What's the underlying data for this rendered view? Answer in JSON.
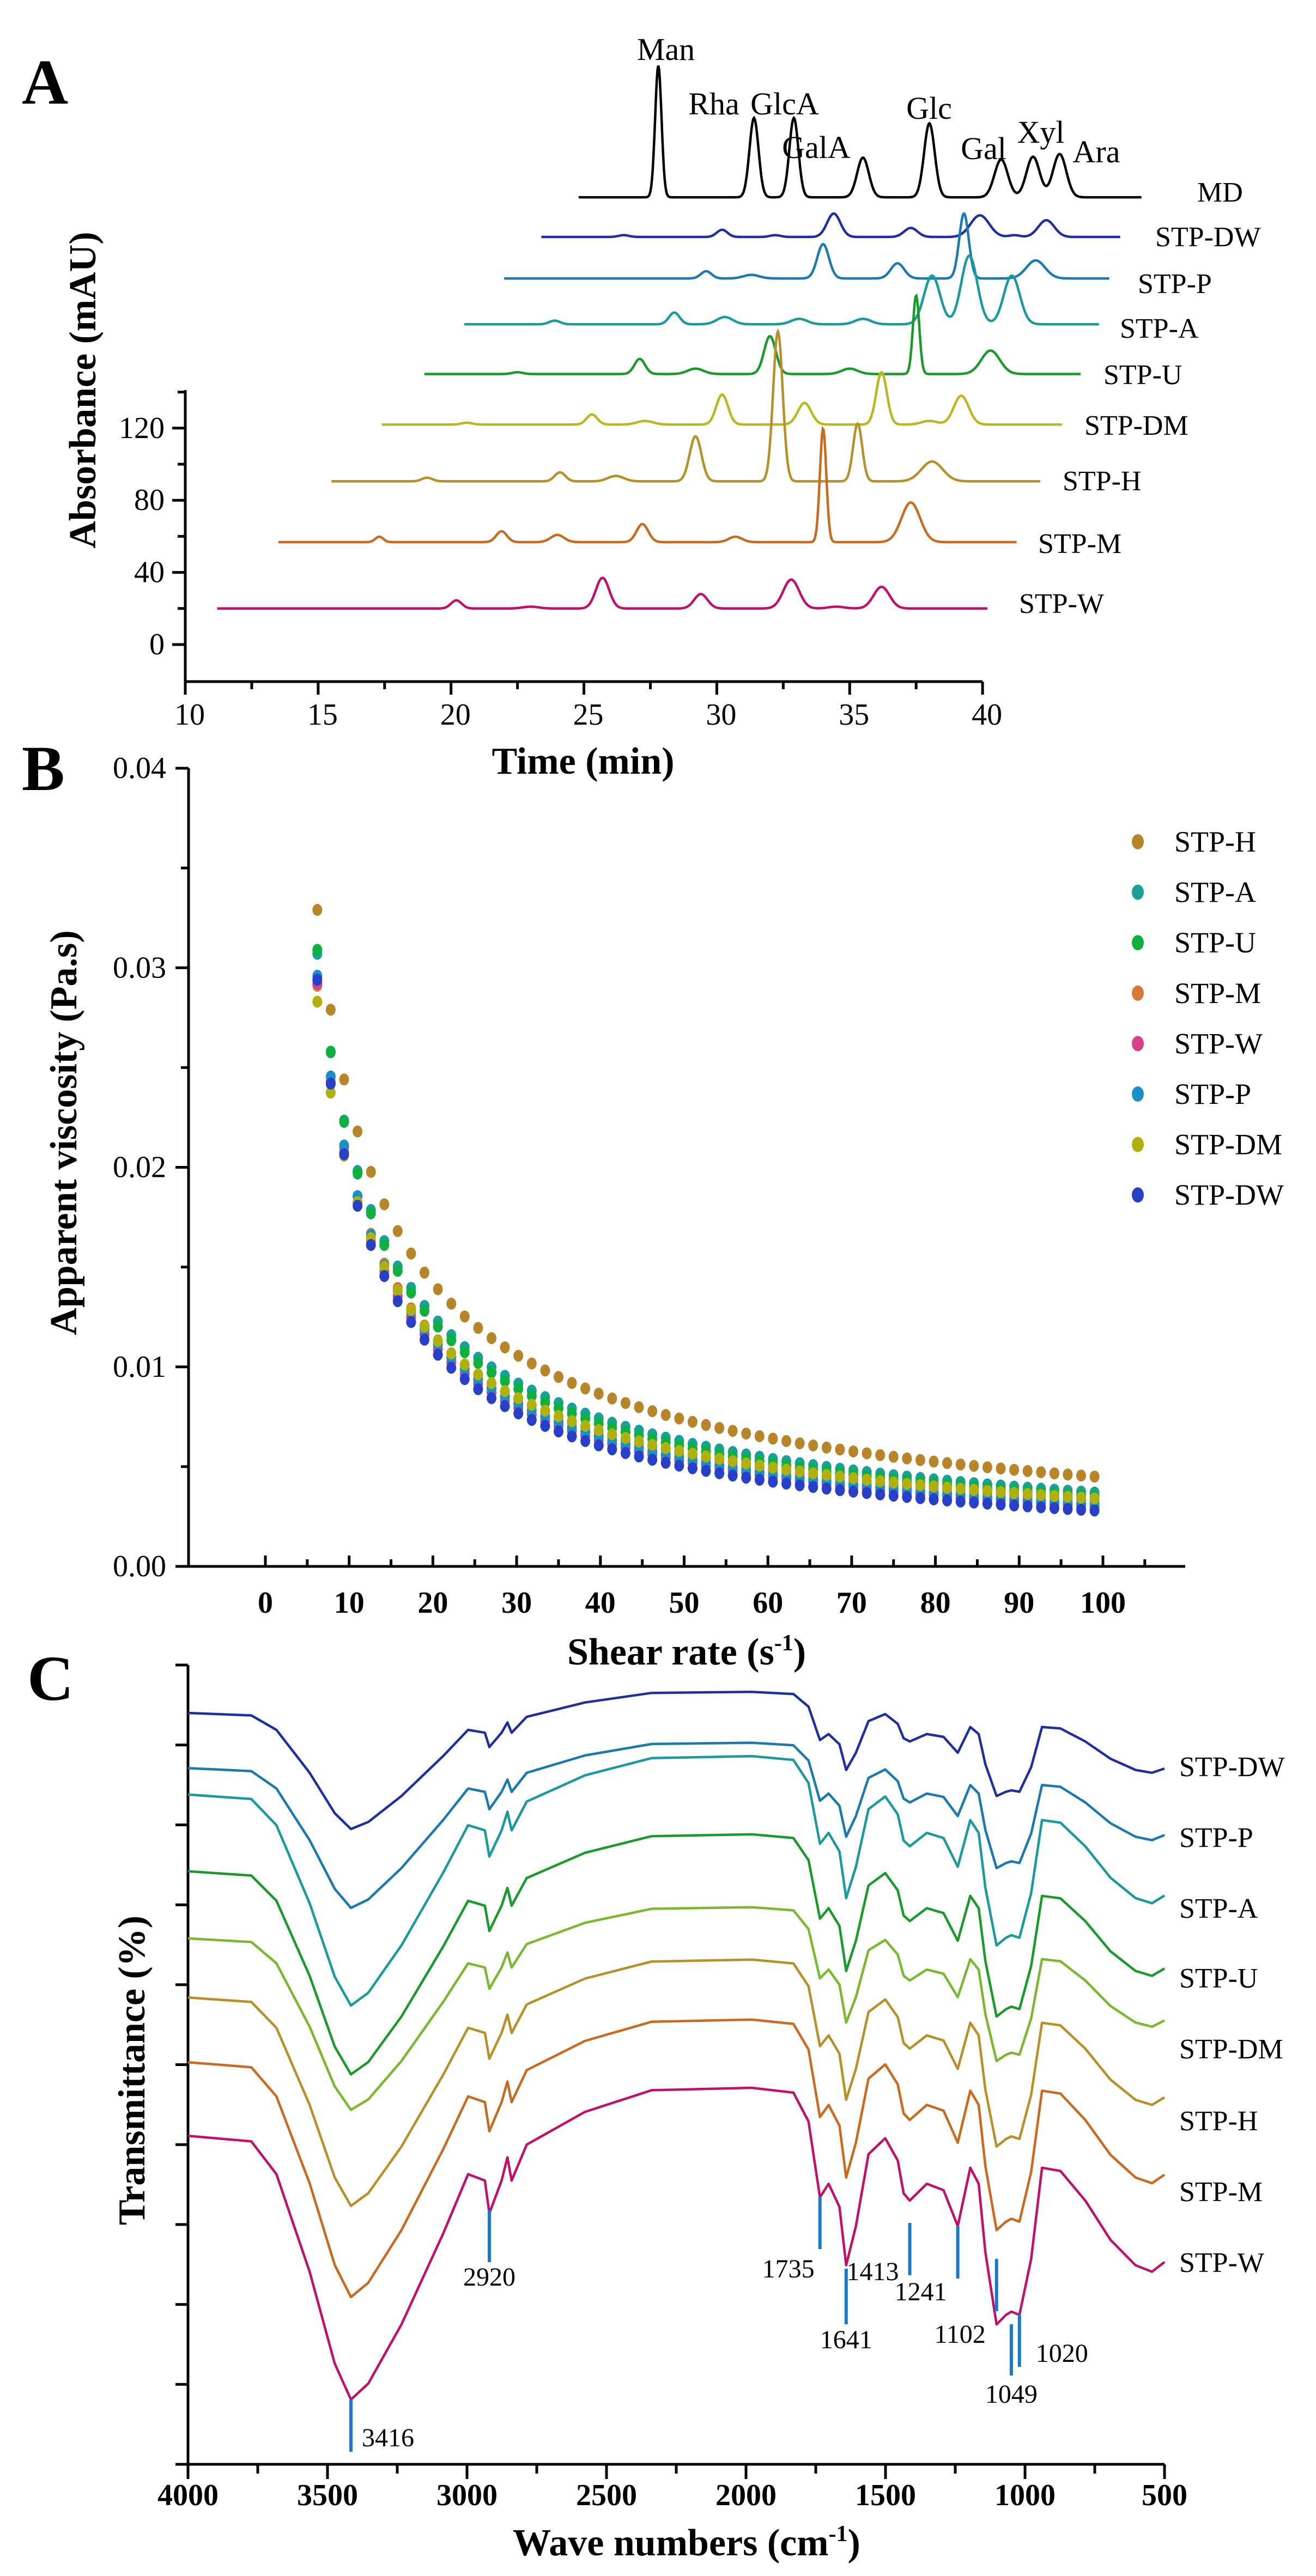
{
  "chart_data": [
    {
      "panel": "A",
      "type": "line",
      "title": "",
      "xlabel": "Time (min)",
      "ylabel": "Absorbance (mAU)",
      "xlim": [
        10,
        40
      ],
      "ylim": [
        -20,
        140
      ],
      "xticks": [
        "10",
        "15",
        "20",
        "25",
        "30",
        "35",
        "40"
      ],
      "yticks": [
        "0",
        "40",
        "80",
        "120"
      ],
      "note": "stacked chromatograms; peak = [time_min, height_mAU, sigma_min] in displayed axis units",
      "series": [
        {
          "name": "MD",
          "color": "#000000",
          "baseline": 248,
          "range": [
            24.8,
            46
          ],
          "peaks": [
            [
              27.8,
              73,
              0.12
            ],
            [
              31.4,
              44,
              0.17
            ],
            [
              32.9,
              44,
              0.17
            ],
            [
              35.5,
              22,
              0.22
            ],
            [
              38,
              41,
              0.2
            ],
            [
              40.7,
              21,
              0.25
            ],
            [
              41.9,
              22.5,
              0.25
            ],
            [
              42.9,
              24,
              0.25
            ]
          ]
        },
        {
          "name": "STP-DW",
          "color": "#1f2fa0",
          "baseline": 226,
          "range": [
            23.4,
            45.2
          ],
          "peaks": [
            [
              26.5,
              1,
              0.2
            ],
            [
              30.2,
              4,
              0.2
            ],
            [
              32.2,
              1,
              0.2
            ],
            [
              34.4,
              13,
              0.25
            ],
            [
              37.3,
              5,
              0.25
            ],
            [
              39.9,
              12,
              0.35
            ],
            [
              41.2,
              1,
              0.2
            ],
            [
              42.4,
              9.3,
              0.3
            ]
          ]
        },
        {
          "name": "STP-P",
          "color": "#1a7ab0",
          "baseline": 203,
          "range": [
            22,
            44.8
          ],
          "peaks": [
            [
              29.6,
              4,
              0.2
            ],
            [
              31.3,
              2,
              0.3
            ],
            [
              34,
              19,
              0.22
            ],
            [
              36.8,
              8.4,
              0.25
            ],
            [
              39.3,
              36,
              0.18
            ],
            [
              42,
              10,
              0.35
            ]
          ]
        },
        {
          "name": "STP-A",
          "color": "#1a9a9a",
          "baseline": 177.6,
          "range": [
            20.5,
            44.4
          ],
          "peaks": [
            [
              23.9,
              2,
              0.2
            ],
            [
              28.4,
              6.5,
              0.2
            ],
            [
              30.3,
              4,
              0.3
            ],
            [
              33.1,
              3,
              0.3
            ],
            [
              35.5,
              3,
              0.3
            ],
            [
              38.1,
              27,
              0.3
            ],
            [
              39.5,
              38,
              0.3
            ],
            [
              41.1,
              27,
              0.3
            ]
          ]
        },
        {
          "name": "STP-U",
          "color": "#1a9a2a",
          "baseline": 150,
          "range": [
            19,
            43.7
          ],
          "peaks": [
            [
              22.5,
              1,
              0.2
            ],
            [
              27.1,
              8.4,
              0.2
            ],
            [
              29.2,
              3,
              0.3
            ],
            [
              32,
              21,
              0.22
            ],
            [
              35,
              3,
              0.3
            ],
            [
              37.5,
              43.5,
              0.12
            ],
            [
              40.3,
              13,
              0.35
            ]
          ]
        },
        {
          "name": "STP-DM",
          "color": "#b8b820",
          "baseline": 122,
          "range": [
            17.4,
            43
          ],
          "peaks": [
            [
              20.6,
              1,
              0.2
            ],
            [
              25.3,
              5.6,
              0.2
            ],
            [
              27.3,
              2,
              0.3
            ],
            [
              30.2,
              16.6,
              0.22
            ],
            [
              33.3,
              12,
              0.25
            ],
            [
              36.2,
              29,
              0.2
            ],
            [
              38,
              2,
              0.3
            ],
            [
              39.2,
              16,
              0.28
            ]
          ]
        },
        {
          "name": "STP-H",
          "color": "#b8902a",
          "baseline": 90.5,
          "range": [
            15.5,
            42.2
          ],
          "peaks": [
            [
              19.1,
              2,
              0.2
            ],
            [
              24.1,
              5,
              0.2
            ],
            [
              26.2,
              3,
              0.3
            ],
            [
              29.2,
              25,
              0.22
            ],
            [
              32.3,
              83,
              0.18
            ],
            [
              35.3,
              32,
              0.17
            ],
            [
              38.1,
              11,
              0.4
            ]
          ]
        },
        {
          "name": "STP-M",
          "color": "#c86a20",
          "baseline": 56.8,
          "range": [
            13.5,
            41.3
          ],
          "peaks": [
            [
              17.3,
              3,
              0.15
            ],
            [
              21.9,
              6,
              0.2
            ],
            [
              24,
              4,
              0.25
            ],
            [
              27.2,
              10,
              0.22
            ],
            [
              30.7,
              3,
              0.25
            ],
            [
              34,
              63,
              0.12
            ],
            [
              37.3,
              22,
              0.35
            ]
          ]
        },
        {
          "name": "STP-W",
          "color": "#c0106a",
          "baseline": 20,
          "range": [
            11.2,
            40.2
          ],
          "peaks": [
            [
              20.2,
              4.5,
              0.2
            ],
            [
              23,
              1,
              0.3
            ],
            [
              25.7,
              17,
              0.25
            ],
            [
              29.4,
              8,
              0.25
            ],
            [
              32.8,
              16,
              0.3
            ],
            [
              34.5,
              1,
              0.3
            ],
            [
              36.2,
              12,
              0.3
            ]
          ]
        }
      ],
      "annotations": [
        "Man",
        "Rha",
        "GlcA",
        "GalA",
        "Glc",
        "Gal",
        "Xyl",
        "Ara"
      ]
    },
    {
      "panel": "B",
      "type": "scatter",
      "xlabel": "Shear rate (s",
      "xlabel_sup": "-1",
      "xlabel_end": ")",
      "ylabel": "Apparent viscosity (Pa.s)",
      "xlim": [
        -9,
        109
      ],
      "ylim": [
        0,
        0.04
      ],
      "xticks": [
        "0",
        "10",
        "20",
        "30",
        "40",
        "50",
        "60",
        "70",
        "80",
        "90",
        "100"
      ],
      "yticks": [
        "0.00",
        "0.01",
        "0.02",
        "0.03",
        "0.04"
      ],
      "legend_position": "top-right",
      "x": {
        "start": 6.2,
        "step": 1.6,
        "end": 100
      },
      "fit": "power-law between first and last values",
      "series": [
        {
          "name": "STP-H",
          "color": "#b8862a",
          "first": 0.0329,
          "last": 0.0045
        },
        {
          "name": "STP-A",
          "color": "#18a09a",
          "first": 0.0307,
          "last": 0.0037
        },
        {
          "name": "STP-U",
          "color": "#10b040",
          "first": 0.0309,
          "last": 0.0035
        },
        {
          "name": "STP-M",
          "color": "#d87838",
          "first": 0.0291,
          "last": 0.0033
        },
        {
          "name": "STP-W",
          "color": "#d8408a",
          "first": 0.0292,
          "last": 0.003
        },
        {
          "name": "STP-P",
          "color": "#1890c8",
          "first": 0.0296,
          "last": 0.0031
        },
        {
          "name": "STP-DM",
          "color": "#b0b010",
          "first": 0.0283,
          "last": 0.0034
        },
        {
          "name": "STP-DW",
          "color": "#2840c8",
          "first": 0.0294,
          "last": 0.0028
        }
      ]
    },
    {
      "panel": "C",
      "type": "line",
      "xlabel": "Wave  numbers (cm",
      "xlabel_sup": "-1",
      "xlabel_end": ")",
      "ylabel": "Transmittance (%)",
      "xlim": [
        4000,
        500
      ],
      "ylim": [
        0,
        100
      ],
      "xticks": [
        "4000",
        "3500",
        "3000",
        "2500",
        "2000",
        "1500",
        "1000",
        "500"
      ],
      "template_STP-W": [
        [
          4000,
          41.1
        ],
        [
          3773,
          40.4
        ],
        [
          3683,
          36.3
        ],
        [
          3564,
          24.1
        ],
        [
          3474,
          12.6
        ],
        [
          3416,
          8.1
        ],
        [
          3354,
          10.1
        ],
        [
          3235,
          17.5
        ],
        [
          3085,
          28.9
        ],
        [
          2996,
          36.3
        ],
        [
          2936,
          35.5
        ],
        [
          2920,
          31.4
        ],
        [
          2876,
          35.5
        ],
        [
          2855,
          38.4
        ],
        [
          2840,
          35.5
        ],
        [
          2786,
          40.0
        ],
        [
          2577,
          44.1
        ],
        [
          2338,
          46.8
        ],
        [
          1979,
          47.1
        ],
        [
          1830,
          46.5
        ],
        [
          1776,
          42.9
        ],
        [
          1735,
          33.4
        ],
        [
          1704,
          35.1
        ],
        [
          1665,
          32.2
        ],
        [
          1641,
          24.9
        ],
        [
          1606,
          29.8
        ],
        [
          1561,
          38.8
        ],
        [
          1501,
          40.8
        ],
        [
          1456,
          38.0
        ],
        [
          1435,
          33.9
        ],
        [
          1413,
          33.0
        ],
        [
          1352,
          35.1
        ],
        [
          1292,
          34.3
        ],
        [
          1241,
          29.8
        ],
        [
          1196,
          37.1
        ],
        [
          1166,
          35.1
        ],
        [
          1142,
          26.5
        ],
        [
          1102,
          17.5
        ],
        [
          1068,
          18.7
        ],
        [
          1049,
          19.1
        ],
        [
          1020,
          18.7
        ],
        [
          978,
          25.7
        ],
        [
          939,
          37.1
        ],
        [
          873,
          36.7
        ],
        [
          784,
          33.0
        ],
        [
          694,
          28.1
        ],
        [
          604,
          24.9
        ],
        [
          545,
          24.1
        ],
        [
          500,
          25.3
        ]
      ],
      "series": [
        {
          "name": "STP-DW",
          "color": "#1f2fa0",
          "offset": 52.9,
          "scale": 0.44
        },
        {
          "name": "STP-P",
          "color": "#1a7ab0",
          "offset": 46.0,
          "scale": 0.53
        },
        {
          "name": "STP-A",
          "color": "#1a9a9a",
          "offset": 42.7,
          "scale": 0.8
        },
        {
          "name": "STP-U",
          "color": "#1a9a2a",
          "offset": 33.1,
          "scale": 0.77
        },
        {
          "name": "STP-DM",
          "color": "#7ab830",
          "offset": 24.7,
          "scale": 0.65
        },
        {
          "name": "STP-H",
          "color": "#b8902a",
          "offset": 17.3,
          "scale": 0.79
        },
        {
          "name": "STP-M",
          "color": "#c86a20",
          "offset": 9.2,
          "scale": 0.89
        },
        {
          "name": "STP-W",
          "color": "#c0106a",
          "offset": 0,
          "scale": 1
        }
      ],
      "annotation_color": "#1a7ac8",
      "annotations": [
        "3416",
        "2920",
        "1735",
        "1641",
        "1413",
        "1241",
        "1102",
        "1049",
        "1020"
      ]
    }
  ],
  "panels": {
    "a": "A",
    "b": "B",
    "c": "C"
  }
}
